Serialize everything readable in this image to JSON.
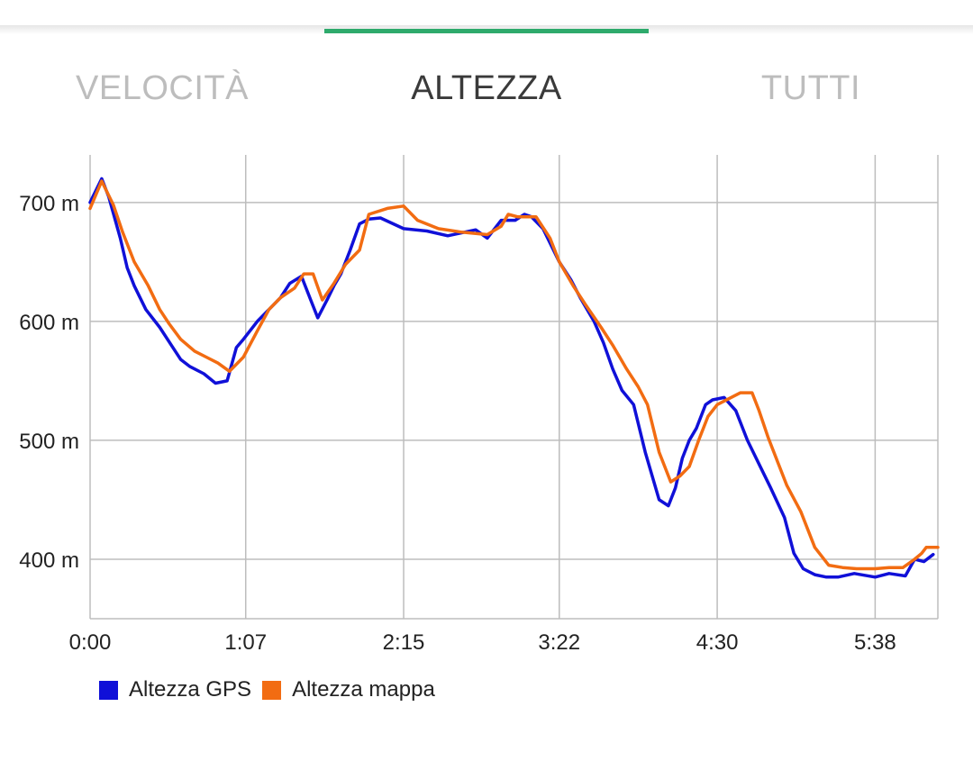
{
  "tabs": [
    {
      "label": "VELOCITÀ",
      "active": false
    },
    {
      "label": "ALTEZZA",
      "active": true
    },
    {
      "label": "TUTTI",
      "active": false
    }
  ],
  "colors": {
    "tab_indicator": "#2eaa6c",
    "gps": "#1010d8",
    "map": "#f26c12",
    "grid": "#bdbdbd"
  },
  "chart_data": {
    "type": "line",
    "title": "",
    "xlabel": "",
    "ylabel": "",
    "x_unit": "h:mm",
    "xlim": [
      "0:00",
      "6:05"
    ],
    "ylim": [
      350,
      740
    ],
    "x_ticks": [
      "0:00",
      "1:07",
      "2:15",
      "3:22",
      "4:30",
      "5:38"
    ],
    "y_ticks": [
      {
        "value": 400,
        "label": "400 m"
      },
      {
        "value": 500,
        "label": "500 m"
      },
      {
        "value": 600,
        "label": "600 m"
      },
      {
        "value": 700,
        "label": "700 m"
      }
    ],
    "grid": true,
    "legend_position": "bottom-left",
    "series": [
      {
        "name": "Altezza GPS",
        "color": "#1010d8",
        "x": [
          "0:00",
          "0:05",
          "0:08",
          "0:13",
          "0:16",
          "0:19",
          "0:24",
          "0:30",
          "0:35",
          "0:39",
          "0:43",
          "0:45",
          "0:49",
          "0:54",
          "0:59",
          "1:03",
          "1:06",
          "1:12",
          "1:17",
          "1:22",
          "1:26",
          "1:31",
          "1:35",
          "1:38",
          "1:42",
          "1:45",
          "1:48",
          "1:52",
          "1:56",
          "2:00",
          "2:05",
          "2:15",
          "2:25",
          "2:34",
          "2:46",
          "2:51",
          "2:57",
          "3:03",
          "3:07",
          "3:10",
          "3:15",
          "3:22",
          "3:27",
          "3:31",
          "3:37",
          "3:41",
          "3:45",
          "3:49",
          "3:54",
          "3:59",
          "4:05",
          "4:09",
          "4:12",
          "4:15",
          "4:18",
          "4:21",
          "4:25",
          "4:28",
          "4:33",
          "4:38",
          "4:43",
          "4:48",
          "4:53",
          "4:59",
          "5:03",
          "5:07",
          "5:12",
          "5:17",
          "5:22",
          "5:29",
          "5:38",
          "5:44",
          "5:51",
          "5:55",
          "5:59",
          "6:03"
        ],
        "values": [
          700,
          720,
          705,
          670,
          645,
          630,
          610,
          595,
          580,
          568,
          562,
          560,
          556,
          548,
          550,
          578,
          585,
          600,
          610,
          620,
          632,
          638,
          618,
          603,
          618,
          630,
          640,
          660,
          682,
          686,
          687,
          678,
          676,
          672,
          677,
          670,
          685,
          685,
          690,
          688,
          678,
          650,
          635,
          620,
          600,
          582,
          560,
          542,
          530,
          490,
          450,
          445,
          460,
          485,
          500,
          510,
          530,
          534,
          536,
          525,
          500,
          480,
          460,
          435,
          405,
          392,
          387,
          385,
          385,
          388,
          385,
          388,
          386,
          400,
          398,
          404
        ]
      },
      {
        "name": "Altezza mappa",
        "color": "#f26c12",
        "x": [
          "0:00",
          "0:05",
          "0:10",
          "0:14",
          "0:19",
          "0:25",
          "0:30",
          "0:34",
          "0:39",
          "0:45",
          "0:50",
          "0:55",
          "1:00",
          "1:06",
          "1:12",
          "1:17",
          "1:22",
          "1:28",
          "1:32",
          "1:36",
          "1:40",
          "1:45",
          "1:50",
          "1:56",
          "2:00",
          "2:08",
          "2:15",
          "2:21",
          "2:30",
          "2:40",
          "2:51",
          "2:57",
          "3:00",
          "3:04",
          "3:08",
          "3:12",
          "3:18",
          "3:22",
          "3:28",
          "3:33",
          "3:40",
          "3:45",
          "3:51",
          "3:56",
          "4:00",
          "4:05",
          "4:10",
          "4:14",
          "4:18",
          "4:22",
          "4:26",
          "4:30",
          "4:35",
          "4:40",
          "4:45",
          "4:48",
          "4:52",
          "4:56",
          "5:00",
          "5:06",
          "5:12",
          "5:18",
          "5:24",
          "5:30",
          "5:38",
          "5:44",
          "5:50",
          "5:55",
          "5:58",
          "6:00",
          "6:05"
        ],
        "values": [
          695,
          718,
          698,
          675,
          650,
          630,
          610,
          598,
          585,
          575,
          570,
          565,
          558,
          570,
          592,
          610,
          620,
          628,
          640,
          640,
          618,
          632,
          648,
          660,
          690,
          695,
          697,
          685,
          678,
          675,
          673,
          680,
          690,
          688,
          688,
          688,
          670,
          650,
          630,
          615,
          595,
          580,
          560,
          545,
          530,
          490,
          465,
          470,
          478,
          500,
          520,
          530,
          535,
          540,
          540,
          525,
          502,
          482,
          462,
          440,
          410,
          395,
          393,
          392,
          392,
          393,
          393,
          400,
          405,
          410,
          410
        ]
      }
    ]
  }
}
